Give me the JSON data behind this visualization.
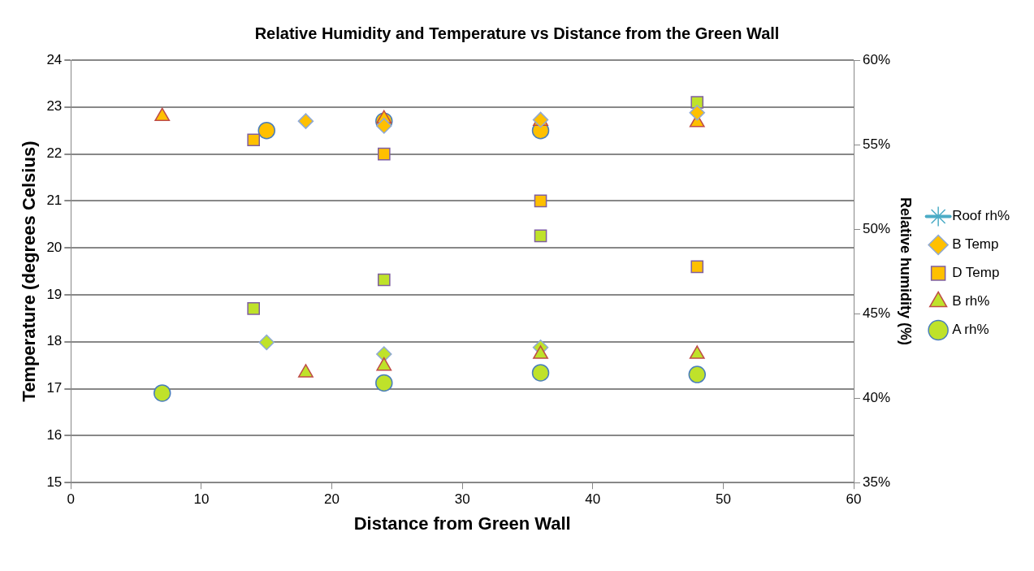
{
  "chart_data": {
    "type": "scatter",
    "title": "Relative Humidity and Temperature vs Distance from the Green Wall",
    "xlabel": "Distance from Green Wall",
    "ylabel": "Temperature (degrees Celsius)",
    "y2label": "Relative humidity (%)",
    "xlim": [
      0,
      60
    ],
    "xticks": [
      0,
      10,
      20,
      30,
      40,
      50,
      60
    ],
    "ylim": [
      15,
      24
    ],
    "yticks": [
      15,
      16,
      17,
      18,
      19,
      20,
      21,
      22,
      23,
      24
    ],
    "y2lim": [
      35,
      60
    ],
    "y2ticks": [
      {
        "value": 35,
        "label": "35%"
      },
      {
        "value": 40,
        "label": "40%"
      },
      {
        "value": 45,
        "label": "45%"
      },
      {
        "value": 50,
        "label": "50%"
      },
      {
        "value": 55,
        "label": "55%"
      },
      {
        "value": 60,
        "label": "60%"
      }
    ],
    "grid": "y",
    "legend": "right",
    "series": [
      {
        "name": "Roof rh%",
        "type": "line",
        "marker": "star",
        "color": "#4bacc6",
        "axis": "y2"
      },
      {
        "name": "B Temp",
        "marker": "diamond",
        "color": "#ffc000",
        "x": [
          18,
          24,
          36,
          48
        ],
        "values": [
          22.7,
          22.6,
          22.73,
          22.88
        ]
      },
      {
        "name": "D Temp",
        "marker": "square",
        "color": "#ffc000",
        "x": [
          14,
          24,
          36,
          48
        ],
        "values": [
          22.3,
          22.0,
          21.0,
          19.6
        ]
      },
      {
        "name": "B rh%",
        "marker": "triangle",
        "color": "#bfe22a",
        "axis": "y2",
        "x": [
          18,
          24,
          36,
          48
        ],
        "values": [
          41.5,
          41.9,
          42.6,
          42.6
        ]
      },
      {
        "name": "A rh%",
        "marker": "circle",
        "color": "#bfe22a",
        "axis": "y2",
        "x": [
          7,
          24,
          36,
          48
        ],
        "values": [
          40.3,
          40.9,
          41.5,
          41.4
        ]
      },
      {
        "marker": "triangle",
        "color": "#ffc000",
        "x": [
          7,
          24,
          36,
          48
        ],
        "values": [
          22.8,
          22.75,
          22.7,
          22.67
        ]
      },
      {
        "marker": "circle",
        "color": "#ffc000",
        "x": [
          15,
          24,
          36
        ],
        "values": [
          22.5,
          22.7,
          22.5
        ]
      },
      {
        "marker": "square",
        "color": "#bfe22a",
        "axis": "y2",
        "x": [
          14,
          24,
          36,
          48
        ],
        "values": [
          45.3,
          47.0,
          49.6,
          57.5
        ]
      },
      {
        "marker": "diamond",
        "color": "#bfe22a",
        "axis": "y2",
        "x": [
          15,
          24,
          36
        ],
        "values": [
          43.3,
          42.6,
          43.0
        ]
      }
    ]
  }
}
